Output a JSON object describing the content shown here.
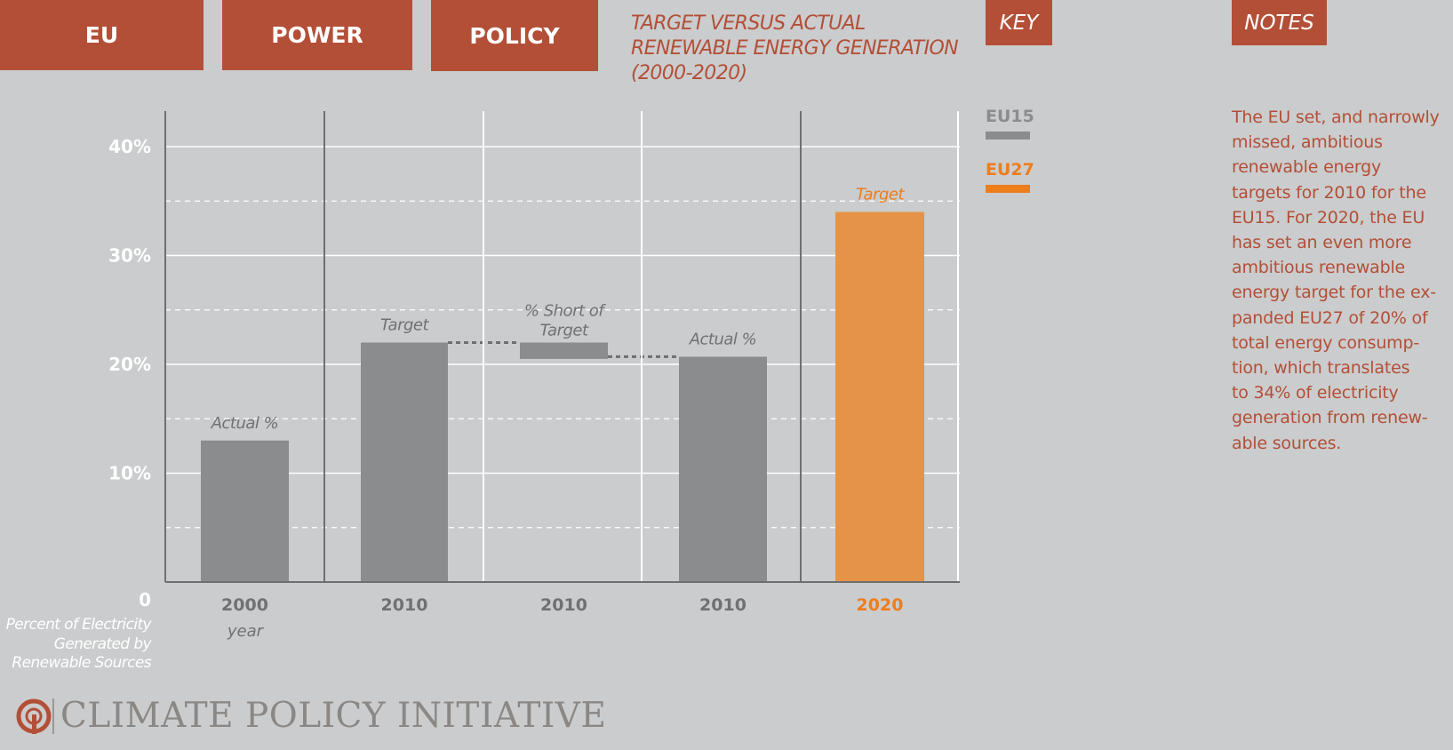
{
  "nav": {
    "tabs": [
      "EU",
      "POWER",
      "POLICY"
    ],
    "key_label": "KEY",
    "notes_label": "NOTES"
  },
  "chart_title_lines": [
    "TARGET VERSUS ACTUAL",
    "RENEWABLE ENERGY GENERATION",
    "(2000-2020)"
  ],
  "legend": [
    {
      "name": "EU15",
      "color": "#8b8c8e"
    },
    {
      "name": "EU27",
      "color": "#ee7d1c"
    }
  ],
  "notes_lines": [
    "The EU set, and narrowly",
    "missed, ambitious",
    "renewable energy",
    "targets for 2010 for the",
    "EU15. For 2020, the EU",
    "has set an even more",
    "ambitious renewable",
    "energy target for the ex-",
    "panded EU27 of 20% of",
    "total energy consump-",
    "tion, which translates",
    "to 34% of electricity",
    "generation from renew-",
    "able sources."
  ],
  "y_caption_lines": [
    "Percent of Electricity",
    "Generated by",
    "Renewable Sources"
  ],
  "logo": {
    "name": "CLIMATE POLICY INITIATIVE"
  },
  "colors": {
    "background": "#cbcccd",
    "accent": "#b34f37",
    "eu15": "#8b8c8e",
    "eu27_bar": "#e59348",
    "eu27_text": "#ee7d1c"
  },
  "chart_data": {
    "type": "bar",
    "ylim": [
      0,
      43
    ],
    "y_ticks": [
      {
        "value": 0,
        "label": "0"
      },
      {
        "value": 10,
        "label": "10%"
      },
      {
        "value": 20,
        "label": "20%"
      },
      {
        "value": 30,
        "label": "30%"
      },
      {
        "value": 40,
        "label": "40%"
      }
    ],
    "dashed_gridlines": [
      5,
      15,
      25,
      35
    ],
    "x_axis_title": "year",
    "bars": [
      {
        "category": "2000",
        "label": "Actual %",
        "base": 0,
        "value": 13,
        "series": "EU15"
      },
      {
        "category": "2010",
        "label": "Target",
        "base": 0,
        "value": 22,
        "series": "EU15"
      },
      {
        "category": "2010",
        "label": "% Short of Target",
        "base": 20.5,
        "value": 22,
        "series": "EU15"
      },
      {
        "category": "2010",
        "label": "Actual %",
        "base": 0,
        "value": 20.7,
        "series": "EU15"
      },
      {
        "category": "2020",
        "label": "Target",
        "base": 0,
        "value": 34,
        "series": "EU27"
      }
    ],
    "grid": true,
    "legend_position": "right"
  }
}
